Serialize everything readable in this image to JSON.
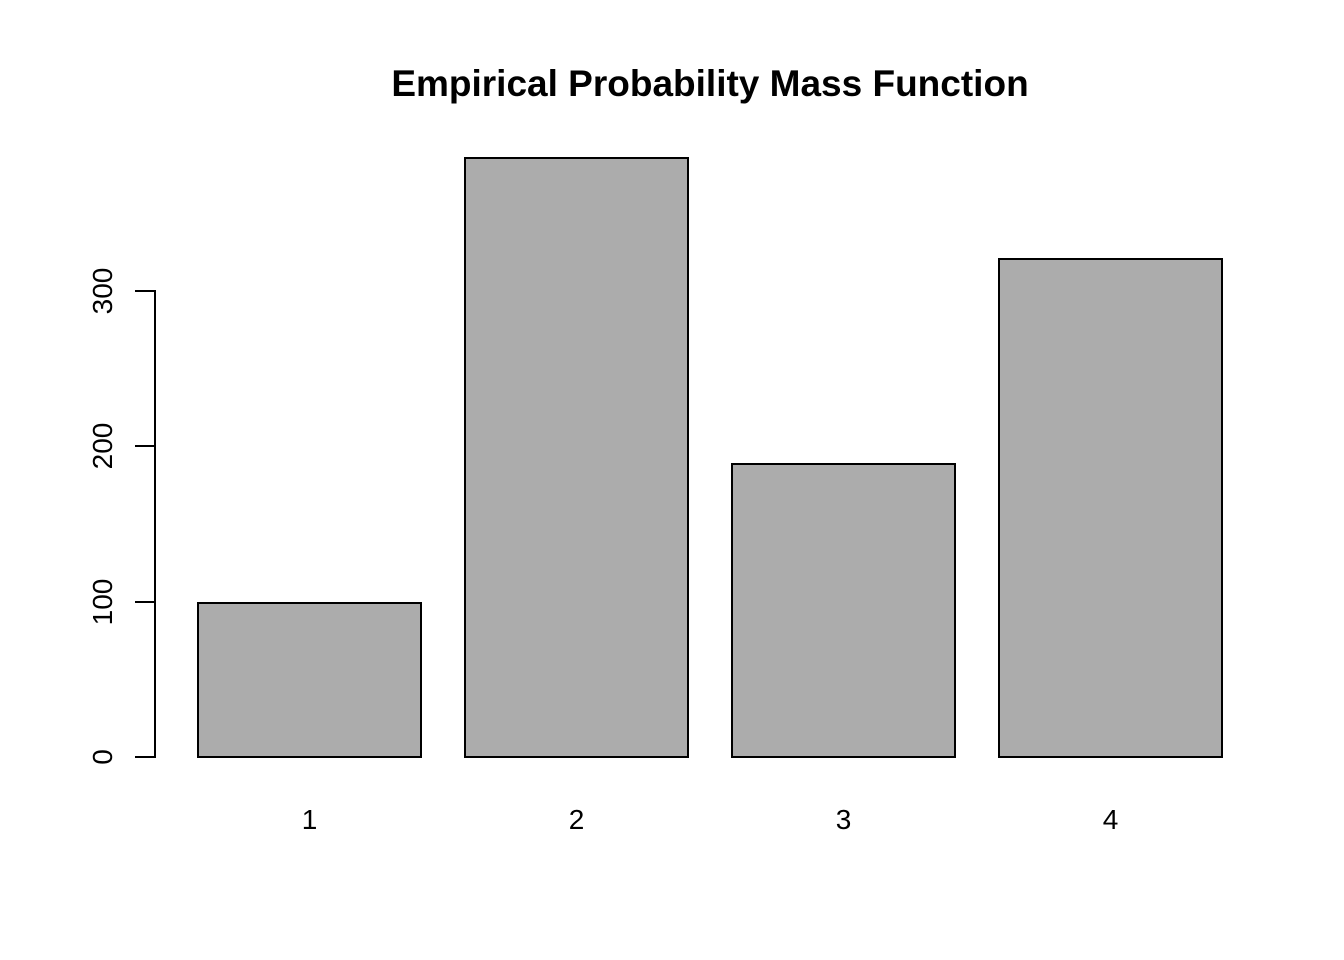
{
  "chart_data": {
    "type": "bar",
    "title": "Empirical Probability Mass Function",
    "categories": [
      "1",
      "2",
      "3",
      "4"
    ],
    "values": [
      100,
      386,
      189,
      321
    ],
    "xlabel": "",
    "ylabel": "",
    "yticks": [
      0,
      100,
      200,
      300
    ],
    "ylim": [
      0,
      390
    ],
    "grid": false,
    "legend_position": "none",
    "bar_fill_color": "#acacac",
    "bar_border_color": "#000000",
    "axis_color": "#000000",
    "text_color": "#000000",
    "background_color": "#ffffff"
  }
}
